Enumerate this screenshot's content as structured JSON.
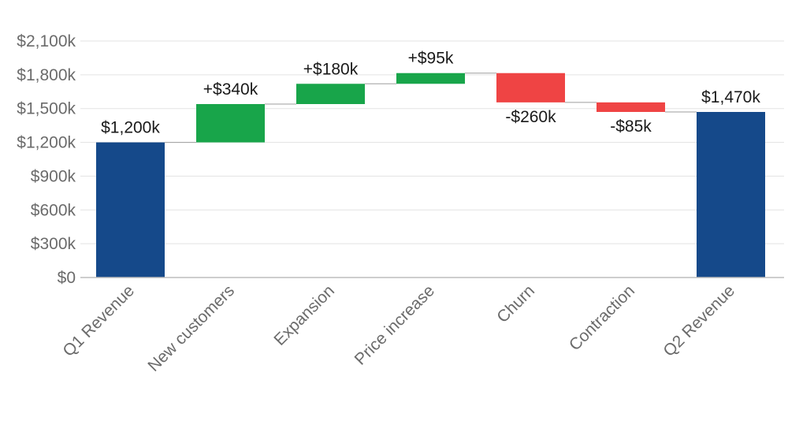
{
  "chart_data": {
    "type": "waterfall",
    "title": "",
    "xlabel": "",
    "ylabel": "",
    "ylim": [
      0,
      2100
    ],
    "yticks": [
      0,
      300,
      600,
      900,
      1200,
      1500,
      1800,
      2100
    ],
    "ytick_labels": [
      "$0",
      "$300k",
      "$600k",
      "$900k",
      "$1,200k",
      "$1,500k",
      "$1,800k",
      "$2,100k"
    ],
    "grid": true,
    "categories": [
      "Q1 Revenue",
      "New customers",
      "Expansion",
      "Price increase",
      "Churn",
      "Contraction",
      "Q2 Revenue"
    ],
    "values": [
      1200,
      340,
      180,
      95,
      -260,
      -85,
      1470
    ],
    "kinds": [
      "total",
      "delta",
      "delta",
      "delta",
      "delta",
      "delta",
      "total"
    ],
    "data_labels": [
      "$1,200k",
      "+$340k",
      "+$180k",
      "+$95k",
      "-$260k",
      "-$85k",
      "$1,470k"
    ],
    "colors": {
      "total": "#15498a",
      "increase": "#18a54a",
      "decrease": "#ef4444",
      "grid": "#e3e3e3",
      "connector": "#9e9e9e",
      "axis": "#bdbdbd"
    }
  }
}
